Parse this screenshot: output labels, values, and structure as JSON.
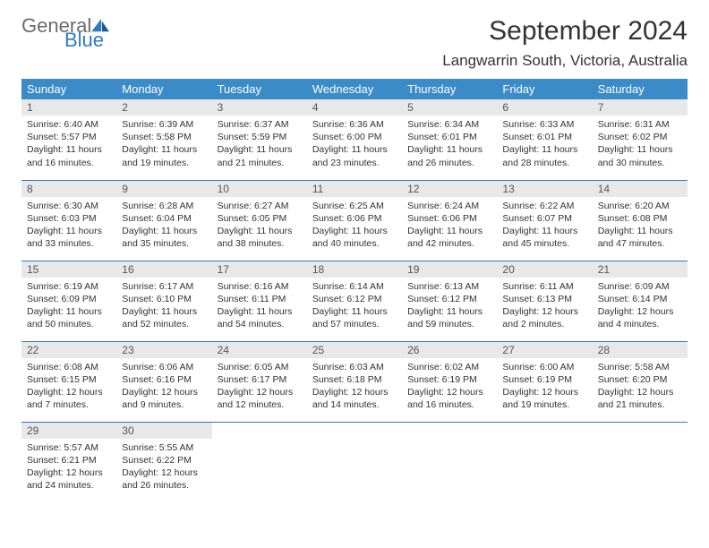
{
  "logo": {
    "text1": "General",
    "text2": "Blue"
  },
  "title": "September 2024",
  "location": "Langwarrin South, Victoria, Australia",
  "colors": {
    "header_bg": "#3b8bc9",
    "header_text": "#ffffff",
    "border": "#2f7bbf",
    "daynum_bg": "#e8e8e8",
    "logo_gray": "#6b6b6b",
    "logo_blue": "#2f7bbf"
  },
  "weekdays": [
    "Sunday",
    "Monday",
    "Tuesday",
    "Wednesday",
    "Thursday",
    "Friday",
    "Saturday"
  ],
  "weeks": [
    [
      {
        "n": "1",
        "sr": "6:40 AM",
        "ss": "5:57 PM",
        "dl": "11 hours and 16 minutes."
      },
      {
        "n": "2",
        "sr": "6:39 AM",
        "ss": "5:58 PM",
        "dl": "11 hours and 19 minutes."
      },
      {
        "n": "3",
        "sr": "6:37 AM",
        "ss": "5:59 PM",
        "dl": "11 hours and 21 minutes."
      },
      {
        "n": "4",
        "sr": "6:36 AM",
        "ss": "6:00 PM",
        "dl": "11 hours and 23 minutes."
      },
      {
        "n": "5",
        "sr": "6:34 AM",
        "ss": "6:01 PM",
        "dl": "11 hours and 26 minutes."
      },
      {
        "n": "6",
        "sr": "6:33 AM",
        "ss": "6:01 PM",
        "dl": "11 hours and 28 minutes."
      },
      {
        "n": "7",
        "sr": "6:31 AM",
        "ss": "6:02 PM",
        "dl": "11 hours and 30 minutes."
      }
    ],
    [
      {
        "n": "8",
        "sr": "6:30 AM",
        "ss": "6:03 PM",
        "dl": "11 hours and 33 minutes."
      },
      {
        "n": "9",
        "sr": "6:28 AM",
        "ss": "6:04 PM",
        "dl": "11 hours and 35 minutes."
      },
      {
        "n": "10",
        "sr": "6:27 AM",
        "ss": "6:05 PM",
        "dl": "11 hours and 38 minutes."
      },
      {
        "n": "11",
        "sr": "6:25 AM",
        "ss": "6:06 PM",
        "dl": "11 hours and 40 minutes."
      },
      {
        "n": "12",
        "sr": "6:24 AM",
        "ss": "6:06 PM",
        "dl": "11 hours and 42 minutes."
      },
      {
        "n": "13",
        "sr": "6:22 AM",
        "ss": "6:07 PM",
        "dl": "11 hours and 45 minutes."
      },
      {
        "n": "14",
        "sr": "6:20 AM",
        "ss": "6:08 PM",
        "dl": "11 hours and 47 minutes."
      }
    ],
    [
      {
        "n": "15",
        "sr": "6:19 AM",
        "ss": "6:09 PM",
        "dl": "11 hours and 50 minutes."
      },
      {
        "n": "16",
        "sr": "6:17 AM",
        "ss": "6:10 PM",
        "dl": "11 hours and 52 minutes."
      },
      {
        "n": "17",
        "sr": "6:16 AM",
        "ss": "6:11 PM",
        "dl": "11 hours and 54 minutes."
      },
      {
        "n": "18",
        "sr": "6:14 AM",
        "ss": "6:12 PM",
        "dl": "11 hours and 57 minutes."
      },
      {
        "n": "19",
        "sr": "6:13 AM",
        "ss": "6:12 PM",
        "dl": "11 hours and 59 minutes."
      },
      {
        "n": "20",
        "sr": "6:11 AM",
        "ss": "6:13 PM",
        "dl": "12 hours and 2 minutes."
      },
      {
        "n": "21",
        "sr": "6:09 AM",
        "ss": "6:14 PM",
        "dl": "12 hours and 4 minutes."
      }
    ],
    [
      {
        "n": "22",
        "sr": "6:08 AM",
        "ss": "6:15 PM",
        "dl": "12 hours and 7 minutes."
      },
      {
        "n": "23",
        "sr": "6:06 AM",
        "ss": "6:16 PM",
        "dl": "12 hours and 9 minutes."
      },
      {
        "n": "24",
        "sr": "6:05 AM",
        "ss": "6:17 PM",
        "dl": "12 hours and 12 minutes."
      },
      {
        "n": "25",
        "sr": "6:03 AM",
        "ss": "6:18 PM",
        "dl": "12 hours and 14 minutes."
      },
      {
        "n": "26",
        "sr": "6:02 AM",
        "ss": "6:19 PM",
        "dl": "12 hours and 16 minutes."
      },
      {
        "n": "27",
        "sr": "6:00 AM",
        "ss": "6:19 PM",
        "dl": "12 hours and 19 minutes."
      },
      {
        "n": "28",
        "sr": "5:58 AM",
        "ss": "6:20 PM",
        "dl": "12 hours and 21 minutes."
      }
    ],
    [
      {
        "n": "29",
        "sr": "5:57 AM",
        "ss": "6:21 PM",
        "dl": "12 hours and 24 minutes."
      },
      {
        "n": "30",
        "sr": "5:55 AM",
        "ss": "6:22 PM",
        "dl": "12 hours and 26 minutes."
      },
      null,
      null,
      null,
      null,
      null
    ]
  ],
  "labels": {
    "sunrise": "Sunrise:",
    "sunset": "Sunset:",
    "daylight": "Daylight:"
  }
}
